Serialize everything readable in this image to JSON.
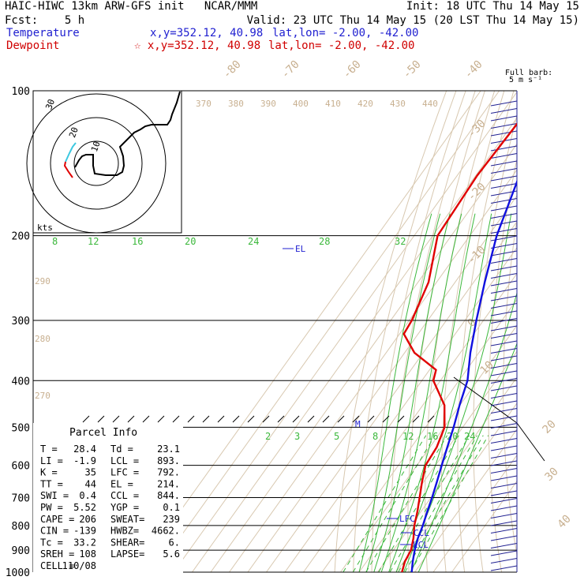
{
  "header": {
    "line1_left": "HAIC-HIWC 13km ARW-GFS init   NCAR/MMM",
    "line1_right": "Init: 18 UTC Thu 14 May 15",
    "line2_left": "Fcst:    5 h",
    "line2_right": "Valid: 23 UTC Thu 14 May 15 (20 LST Thu 14 May 15)",
    "temp_label": "Temperature",
    "temp_xy": "x,y=352.12, 40.98",
    "temp_latlon": "lat,lon= -2.00, -42.00",
    "dew_label": "Dewpoint",
    "dew_xy": "☆ x,y=352.12, 40.98",
    "dew_latlon": "lat,lon= -2.00, -42.00"
  },
  "barb_title": "Full barb:",
  "barb_unit": "5 m s⁻¹",
  "hodo_unit": "kts",
  "hodo_ring_labels": [
    "10",
    "20",
    "30"
  ],
  "parcel_info": {
    "title": "Parcel Info",
    "rows": [
      [
        "T  =",
        "28.4",
        "Td =",
        "23.1"
      ],
      [
        "LI =",
        "-1.9",
        "LCL =",
        "893."
      ],
      [
        "K  =",
        "35",
        "LFC =",
        "792."
      ],
      [
        "TT =",
        "44",
        "EL  =",
        "214."
      ],
      [
        "SWI =",
        "0.4",
        "CCL =",
        "844."
      ],
      [
        "PW =",
        "5.52",
        "YGP =",
        "0.1"
      ],
      [
        "CAPE =",
        "206",
        "SWEAT=",
        "239"
      ],
      [
        "CIN =",
        "-139",
        "HWBZ=",
        "4662."
      ],
      [
        "Tc =",
        "33.2",
        "SHEAR=",
        "6."
      ],
      [
        "SREH =",
        "108",
        "LAPSE=",
        "5.6"
      ],
      [
        "CELL =",
        "110/08",
        "",
        ""
      ]
    ]
  },
  "level_labels": {
    "el": "EL",
    "lfc": "LFC",
    "ccl": "CCL",
    "lcl": "LCL",
    "m": "M"
  },
  "chart_data": {
    "type": "line",
    "title": "",
    "pressure_levels": [
      1000,
      900,
      800,
      700,
      600,
      500,
      400,
      300,
      200,
      100
    ],
    "ylim": [
      1000,
      100
    ],
    "isotherms_top": [
      -80,
      -70,
      -60,
      -50,
      -40
    ],
    "isotherms_right": [
      -30,
      -20,
      -10,
      0,
      10,
      20,
      30,
      40
    ],
    "theta_labels": [
      370,
      380,
      390,
      400,
      410,
      420,
      430,
      440
    ],
    "theta_labels_left": [
      290,
      280,
      270
    ],
    "mixing_ratio_labels_200": [
      8,
      12,
      16,
      20,
      24,
      28,
      32
    ],
    "mixing_ratio_labels_550": [
      2,
      3,
      5,
      8,
      12,
      16,
      20,
      24
    ],
    "series": [
      {
        "name": "Temperature",
        "color": "#1010e0",
        "p": [
          1000,
          950,
          900,
          850,
          800,
          750,
          700,
          650,
          600,
          550,
          500,
          450,
          400,
          350,
          300,
          250,
          200,
          150,
          100
        ],
        "t": [
          28.4,
          24.8,
          21.5,
          18.6,
          16.4,
          13.5,
          10.6,
          7.2,
          3.4,
          -0.6,
          -4.9,
          -10.2,
          -15.4,
          -24.6,
          -33.8,
          -44.0,
          -55.5,
          -66.5,
          -74.6
        ]
      },
      {
        "name": "Dewpoint",
        "color": "#e00000",
        "p": [
          1000,
          950,
          900,
          850,
          800,
          750,
          700,
          650,
          600,
          550,
          500,
          450,
          400,
          380,
          350,
          320,
          300,
          250,
          200,
          150,
          100
        ],
        "td": [
          23.1,
          20.6,
          19.5,
          16.2,
          11.8,
          8.2,
          3.9,
          -0.8,
          -5.4,
          -6.3,
          -9.8,
          -18.3,
          -33.8,
          -36.5,
          -54.8,
          -67.7,
          -68.6,
          -74.3,
          -87.4,
          -89.2,
          -86.6
        ]
      }
    ]
  }
}
